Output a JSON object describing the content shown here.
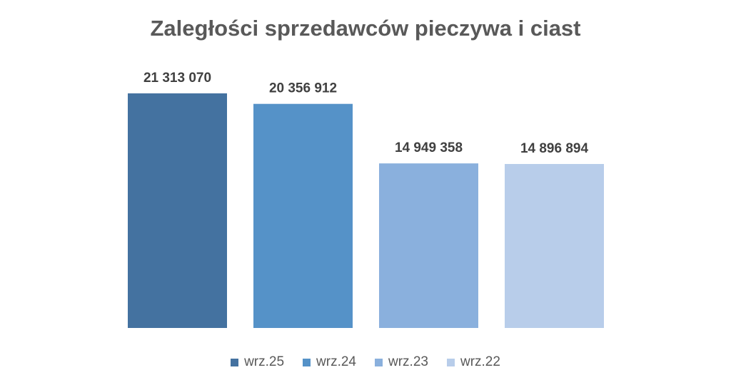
{
  "chart_data": {
    "type": "bar",
    "title": "Zaległości sprzedawców pieczywa i ciast",
    "categories": [
      "wrz.25",
      "wrz.24",
      "wrz.23",
      "wrz.22"
    ],
    "values": [
      21313070,
      20356912,
      14949358,
      14896894
    ],
    "value_labels": [
      "21 313 070",
      "20 356 912",
      "14 949 358",
      "14 896 894"
    ],
    "colors": [
      "#4472a0",
      "#5592c8",
      "#8ab0dd",
      "#b8cdea"
    ],
    "xlabel": "",
    "ylabel": "",
    "ylim": [
      0,
      25000000
    ],
    "grid": false,
    "legend": "bottom"
  }
}
